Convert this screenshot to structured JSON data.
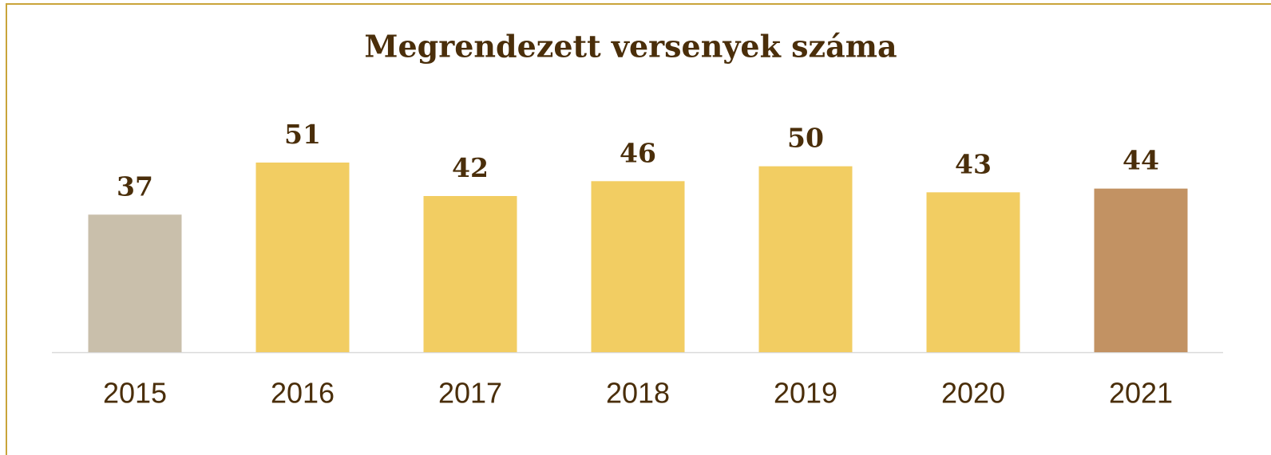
{
  "chart_data": {
    "type": "bar",
    "title": "Megrendezett versenyek száma",
    "categories": [
      "2015",
      "2016",
      "2017",
      "2018",
      "2019",
      "2020",
      "2021"
    ],
    "values": [
      37,
      51,
      42,
      46,
      50,
      43,
      44
    ],
    "colors": [
      "#c9bfab",
      "#f2cd62",
      "#f2cd62",
      "#f2cd62",
      "#f2cd62",
      "#f2cd62",
      "#c29263"
    ]
  }
}
